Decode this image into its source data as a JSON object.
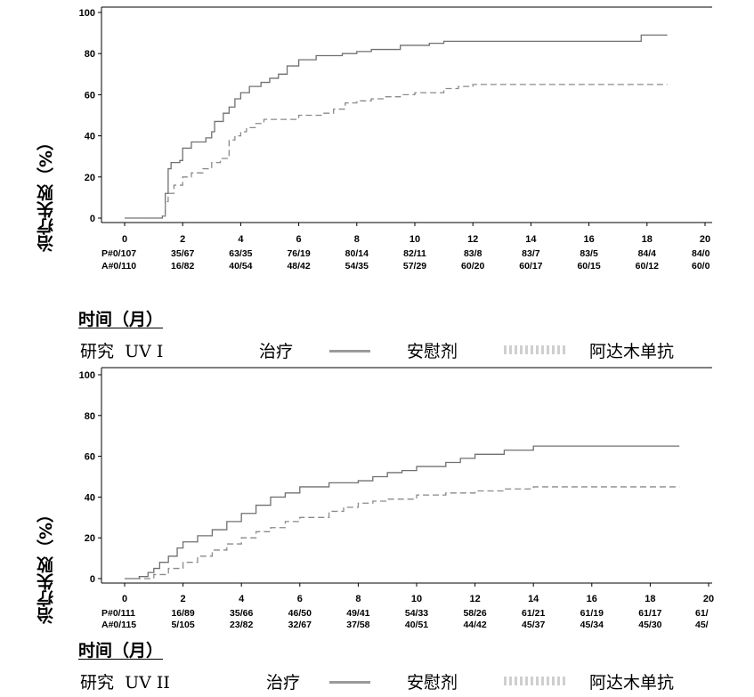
{
  "chart_data": [
    {
      "type": "line",
      "ylabel": "治疗失败（%）",
      "xlabel": "时间（月）",
      "ylim": [
        0,
        100
      ],
      "xlim": [
        0,
        20
      ],
      "yticks": [
        0,
        20,
        40,
        60,
        80,
        100
      ],
      "xticks": [
        0,
        2,
        4,
        6,
        8,
        10,
        12,
        14,
        16,
        18,
        20
      ],
      "risk_table": {
        "rows": [
          {
            "label": "P#0/107",
            "values": [
              "35/67",
              "63/35",
              "76/19",
              "80/14",
              "82/11",
              "83/8",
              "83/7",
              "83/5",
              "84/4",
              "84/0"
            ]
          },
          {
            "label": "A#0/110",
            "values": [
              "16/82",
              "40/54",
              "48/42",
              "54/35",
              "57/29",
              "60/20",
              "60/17",
              "60/15",
              "60/12",
              "60/0"
            ]
          }
        ]
      },
      "series": [
        {
          "style": "solid",
          "x": [
            0,
            1.3,
            1.4,
            1.5,
            1.6,
            1.9,
            2.0,
            2.3,
            2.8,
            3.0,
            3.1,
            3.4,
            3.6,
            3.8,
            4.0,
            4.3,
            4.7,
            5.0,
            5.3,
            5.6,
            6.0,
            6.6,
            7.5,
            8.0,
            8.5,
            9.5,
            10.5,
            11.0,
            12.5,
            14.0,
            15.0,
            16.5,
            17.5,
            17.8,
            18.7
          ],
          "y": [
            0,
            1,
            12,
            24,
            27,
            28,
            34,
            37,
            39,
            42,
            47,
            51,
            54,
            58,
            61,
            64,
            66,
            68,
            70,
            74,
            77,
            79,
            80,
            81,
            82,
            84,
            85,
            86,
            86,
            86,
            86,
            86,
            86,
            89,
            89
          ]
        },
        {
          "style": "dashed",
          "x": [
            0,
            1.3,
            1.4,
            1.5,
            1.7,
            2.0,
            2.3,
            2.7,
            3.0,
            3.3,
            3.6,
            3.8,
            4.0,
            4.2,
            4.5,
            4.8,
            5.3,
            6.0,
            6.8,
            7.2,
            7.6,
            8.0,
            8.5,
            9.0,
            9.5,
            10.0,
            11.0,
            11.5,
            12.0,
            13.0,
            15.0,
            18.0,
            18.7
          ],
          "y": [
            0,
            1,
            8,
            12,
            16,
            20,
            22,
            24,
            27,
            29,
            38,
            40,
            42,
            44,
            46,
            48,
            48,
            50,
            51,
            53,
            56,
            57,
            58,
            59,
            60,
            61,
            63,
            64,
            65,
            65,
            65,
            65,
            65
          ]
        }
      ]
    },
    {
      "type": "line",
      "ylabel": "治疗失败（%）",
      "xlabel": "时间（月）",
      "ylim": [
        0,
        100
      ],
      "xlim": [
        0,
        20
      ],
      "yticks": [
        0,
        20,
        40,
        60,
        80,
        100
      ],
      "xticks": [
        0,
        2,
        4,
        6,
        8,
        10,
        12,
        14,
        16,
        18,
        20
      ],
      "risk_table": {
        "rows": [
          {
            "label": "P#0/111",
            "values": [
              "16/89",
              "35/66",
              "46/50",
              "49/41",
              "54/33",
              "58/26",
              "61/21",
              "61/19",
              "61/17",
              "61/"
            ]
          },
          {
            "label": "A#0/115",
            "values": [
              "5/105",
              "23/82",
              "32/67",
              "37/58",
              "40/51",
              "44/42",
              "45/37",
              "45/34",
              "45/30",
              "45/"
            ]
          }
        ]
      },
      "series": [
        {
          "style": "solid",
          "x": [
            0,
            0.5,
            0.8,
            1.0,
            1.2,
            1.5,
            1.8,
            2.0,
            2.5,
            3.0,
            3.5,
            4.0,
            4.5,
            5.0,
            5.5,
            6.0,
            7.0,
            7.5,
            8.0,
            8.5,
            9.0,
            9.5,
            10.0,
            11.0,
            11.5,
            12.0,
            13.0,
            14.0,
            15.0,
            17.0,
            18.0,
            19.0
          ],
          "y": [
            0,
            1,
            3,
            5,
            8,
            11,
            15,
            18,
            21,
            24,
            28,
            32,
            36,
            40,
            42,
            45,
            47,
            47,
            48,
            50,
            52,
            53,
            55,
            57,
            59,
            61,
            63,
            65,
            65,
            65,
            65,
            65
          ]
        },
        {
          "style": "dashed",
          "x": [
            0,
            0.5,
            1.0,
            1.5,
            2.0,
            2.5,
            3.0,
            3.5,
            4.0,
            4.5,
            5.0,
            5.5,
            6.0,
            6.5,
            7.0,
            7.5,
            8.0,
            8.5,
            9.0,
            10.0,
            11.0,
            12.0,
            13.0,
            14.0,
            16.0,
            18.0,
            19.0
          ],
          "y": [
            0,
            0,
            2,
            5,
            8,
            11,
            14,
            17,
            20,
            23,
            25,
            28,
            30,
            30,
            33,
            35,
            37,
            38,
            39,
            41,
            42,
            43,
            44,
            45,
            45,
            45,
            45
          ]
        }
      ]
    }
  ],
  "legends": [
    {
      "study": "研究  UV I",
      "series1": "治疗",
      "series2": "安慰剂",
      "series3": "阿达木单抗"
    },
    {
      "study": "研究  UV II",
      "series1": "治疗",
      "series2": "安慰剂",
      "series3": "阿达木单抗"
    }
  ],
  "colors": {
    "line_solid": "#707070",
    "line_dashed": "#8a8a8a",
    "axis": "#000000"
  }
}
